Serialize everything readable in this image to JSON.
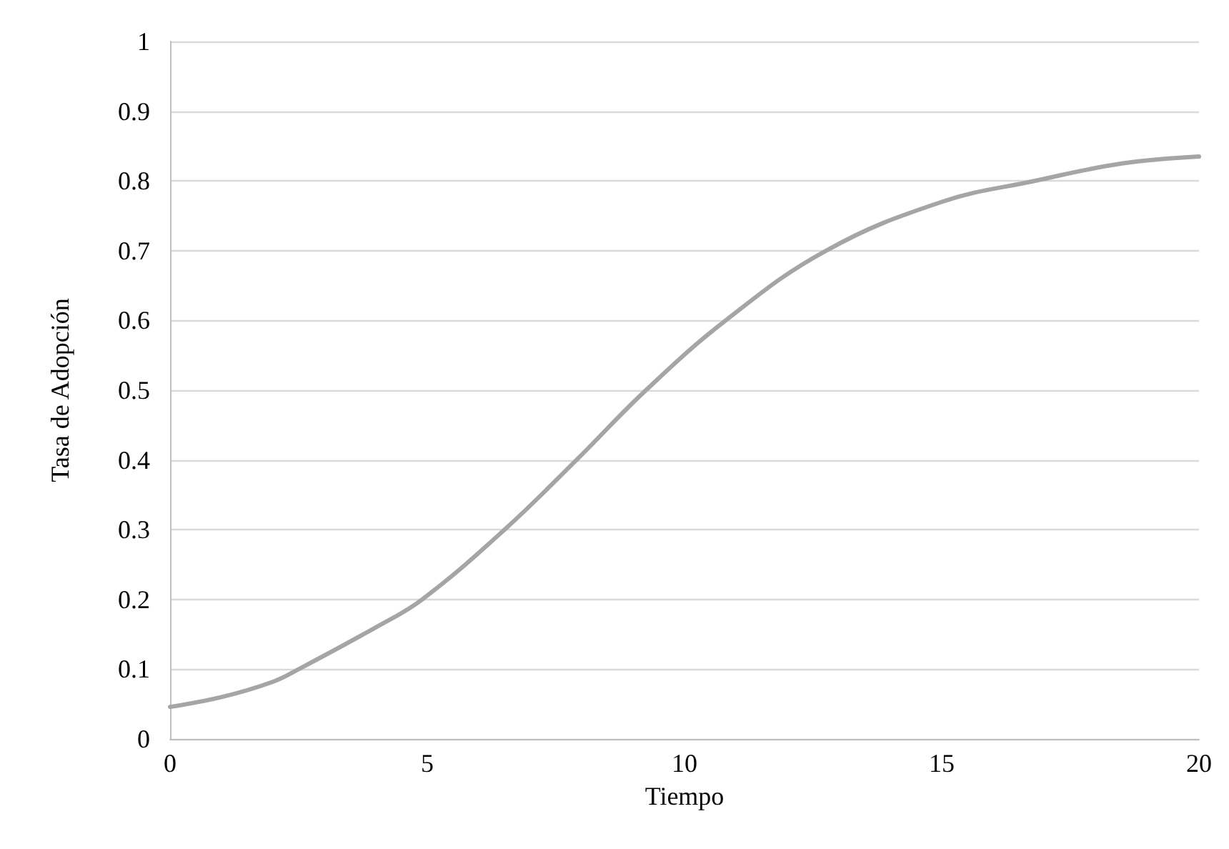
{
  "chart_data": {
    "type": "line",
    "xlabel": "Tiempo",
    "ylabel": "Tasa de Adopción",
    "x": [
      0,
      1,
      2,
      2.5,
      4,
      4.9,
      6.5,
      7.9,
      9.25,
      10.8,
      12.75,
      15,
      16.8,
      18.5,
      20
    ],
    "series": [
      {
        "color": "#a5a5a5",
        "values": [
          0.046,
          0.06,
          0.082,
          0.1,
          0.16,
          0.2,
          0.3,
          0.4,
          0.5,
          0.6,
          0.7,
          0.77,
          0.8,
          0.825,
          0.835
        ]
      }
    ],
    "xlim": [
      0,
      20
    ],
    "xticks": [
      0,
      5,
      10,
      15,
      20
    ],
    "ylim": [
      0,
      1
    ],
    "yticks": [
      0,
      0.1,
      0.2,
      0.3,
      0.4,
      0.5,
      0.6,
      0.7,
      0.8,
      0.9,
      1
    ],
    "grid": "y",
    "marker": "none",
    "line_style": "solid"
  }
}
